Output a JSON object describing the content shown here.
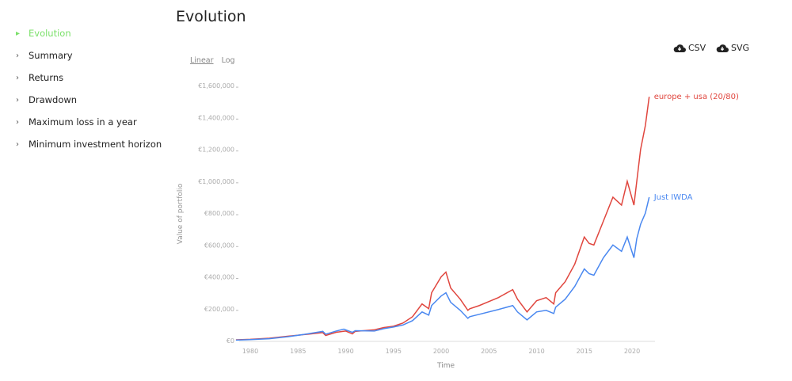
{
  "nav": {
    "items": [
      {
        "label": "Evolution",
        "active": true
      },
      {
        "label": "Summary"
      },
      {
        "label": "Returns"
      },
      {
        "label": "Drawdown"
      },
      {
        "label": "Maximum loss in a year"
      },
      {
        "label": "Minimum investment horizon"
      }
    ]
  },
  "page_title": "Evolution",
  "scale": {
    "linear": "Linear",
    "log": "Log",
    "selected": "Linear"
  },
  "downloads": {
    "csv": "CSV",
    "svg": "SVG",
    "icon": "cloud-download-icon"
  },
  "chart_data": {
    "type": "line",
    "xlabel": "Time",
    "ylabel": "Value of portfolio",
    "xlim": [
      1978.5,
      2022.5
    ],
    "ylim": [
      0,
      1600000
    ],
    "xticks": [
      1980,
      1985,
      1990,
      1995,
      2000,
      2005,
      2010,
      2015,
      2020
    ],
    "yticks": [
      0,
      200000,
      400000,
      600000,
      800000,
      1000000,
      1200000,
      1400000,
      1600000
    ],
    "ytick_labels": [
      "€0",
      "€200,000",
      "€400,000",
      "€600,000",
      "€800,000",
      "€1,000,000",
      "€1,200,000",
      "€1,400,000",
      "€1,600,000"
    ],
    "grid": false,
    "series": [
      {
        "name": "europe + usa (20/80)",
        "color": "#e0463e",
        "x": [
          1978.5,
          1980,
          1982,
          1984,
          1986,
          1987.6,
          1987.9,
          1989,
          1990,
          1990.7,
          1991,
          1993,
          1994,
          1995,
          1996,
          1997,
          1998,
          1998.7,
          1999,
          2000,
          2000.5,
          2001,
          2002,
          2002.8,
          2003,
          2004,
          2006,
          2007.5,
          2008,
          2009,
          2010,
          2011,
          2011.8,
          2012,
          2013,
          2014,
          2015,
          2015.5,
          2016,
          2017,
          2018,
          2018.9,
          2019.5,
          2020.2,
          2020.5,
          2020.9,
          2021.4,
          2021.8
        ],
        "y": [
          5000,
          8000,
          15000,
          28000,
          40000,
          50000,
          32000,
          52000,
          60000,
          42000,
          58000,
          68000,
          82000,
          90000,
          110000,
          150000,
          230000,
          200000,
          300000,
          400000,
          430000,
          330000,
          260000,
          190000,
          200000,
          220000,
          270000,
          320000,
          260000,
          180000,
          250000,
          270000,
          230000,
          300000,
          370000,
          480000,
          650000,
          610000,
          600000,
          750000,
          900000,
          850000,
          1000000,
          850000,
          1000000,
          1200000,
          1350000,
          1530000
        ]
      },
      {
        "name": "Just IWDA",
        "color": "#4a88f0",
        "x": [
          1978.5,
          1980,
          1982,
          1984,
          1986,
          1987.6,
          1987.9,
          1989,
          1989.8,
          1990.7,
          1991,
          1993,
          1994,
          1995,
          1996,
          1997,
          1998,
          1998.7,
          1999,
          2000,
          2000.5,
          2001,
          2002,
          2002.8,
          2003,
          2004,
          2006,
          2007.5,
          2008,
          2009,
          2010,
          2011,
          2011.8,
          2012,
          2013,
          2014,
          2015,
          2015.5,
          2016,
          2017,
          2018,
          2018.9,
          2019.5,
          2020.2,
          2020.5,
          2020.9,
          2021.4,
          2021.8
        ],
        "y": [
          3000,
          6000,
          12000,
          25000,
          42000,
          58000,
          40000,
          60000,
          72000,
          52000,
          62000,
          60000,
          75000,
          85000,
          98000,
          125000,
          180000,
          160000,
          220000,
          280000,
          300000,
          240000,
          190000,
          140000,
          150000,
          165000,
          195000,
          220000,
          180000,
          130000,
          180000,
          190000,
          170000,
          210000,
          260000,
          340000,
          450000,
          420000,
          410000,
          520000,
          600000,
          560000,
          650000,
          520000,
          640000,
          730000,
          800000,
          900000
        ]
      }
    ]
  }
}
